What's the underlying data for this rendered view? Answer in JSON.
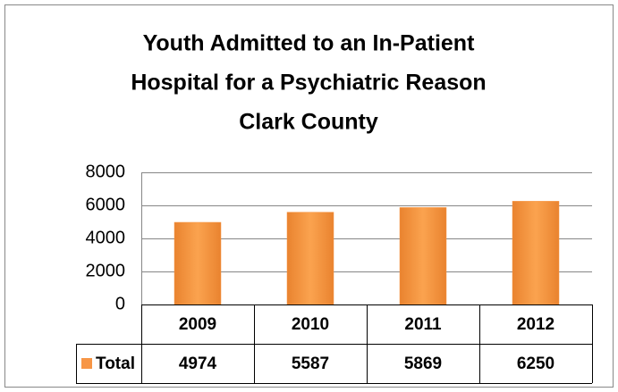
{
  "chart_data": {
    "type": "bar",
    "title": [
      "Youth Admitted to an In-Patient",
      "Hospital  for a Psychiatric Reason",
      "Clark County"
    ],
    "categories": [
      "2009",
      "2010",
      "2011",
      "2012"
    ],
    "series": [
      {
        "name": "Total",
        "color": "#f79646",
        "values": [
          4974,
          5587,
          5869,
          6250
        ]
      }
    ],
    "ylim": [
      0,
      8000
    ],
    "yticks": [
      0,
      2000,
      4000,
      6000,
      8000
    ],
    "grid": true,
    "data_table": true
  }
}
